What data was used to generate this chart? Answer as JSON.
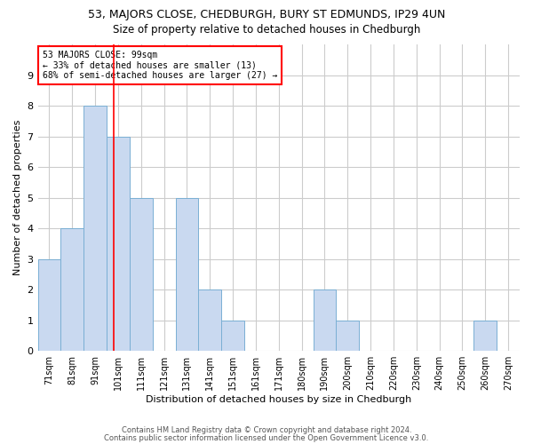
{
  "title": "53, MAJORS CLOSE, CHEDBURGH, BURY ST EDMUNDS, IP29 4UN",
  "subtitle": "Size of property relative to detached houses in Chedburgh",
  "xlabel": "Distribution of detached houses by size in Chedburgh",
  "ylabel": "Number of detached properties",
  "bins": [
    "71sqm",
    "81sqm",
    "91sqm",
    "101sqm",
    "111sqm",
    "121sqm",
    "131sqm",
    "141sqm",
    "151sqm",
    "161sqm",
    "171sqm",
    "180sqm",
    "190sqm",
    "200sqm",
    "210sqm",
    "220sqm",
    "230sqm",
    "240sqm",
    "250sqm",
    "260sqm",
    "270sqm"
  ],
  "values": [
    3,
    4,
    8,
    7,
    5,
    0,
    5,
    2,
    1,
    0,
    0,
    0,
    2,
    1,
    0,
    0,
    0,
    0,
    0,
    1,
    0
  ],
  "bar_color": "#c9d9f0",
  "bar_edge_color": "#7aafd4",
  "annotation_text": "53 MAJORS CLOSE: 99sqm\n← 33% of detached houses are smaller (13)\n68% of semi-detached houses are larger (27) →",
  "annotation_box_color": "white",
  "annotation_box_edge": "red",
  "ylim": [
    0,
    10
  ],
  "yticks": [
    0,
    1,
    2,
    3,
    4,
    5,
    6,
    7,
    8,
    9
  ],
  "footer1": "Contains HM Land Registry data © Crown copyright and database right 2024.",
  "footer2": "Contains public sector information licensed under the Open Government Licence v3.0.",
  "bg_color": "white",
  "grid_color": "#cccccc",
  "title_fontsize": 9,
  "subtitle_fontsize": 8.5,
  "ylabel_fontsize": 8,
  "xlabel_fontsize": 8,
  "tick_fontsize": 7,
  "annotation_fontsize": 7,
  "footer_fontsize": 6
}
